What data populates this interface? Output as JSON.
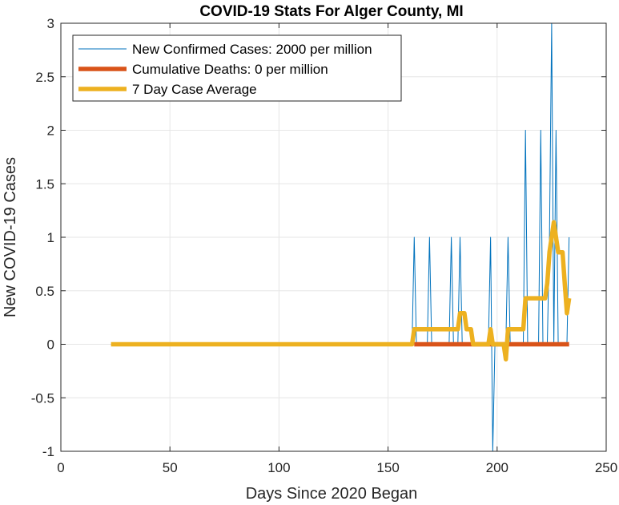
{
  "chart_data": {
    "type": "line",
    "title": "COVID-19 Stats For Alger County, MI",
    "xlabel": "Days Since 2020 Began",
    "ylabel": "New COVID-19 Cases",
    "xlim": [
      0,
      250
    ],
    "ylim": [
      -1,
      3
    ],
    "xticks": [
      0,
      50,
      100,
      150,
      200,
      250
    ],
    "yticks": [
      -1,
      -0.5,
      0,
      0.5,
      1,
      1.5,
      2,
      2.5,
      3
    ],
    "xtick_labels": [
      "0",
      "50",
      "100",
      "150",
      "200",
      "250"
    ],
    "ytick_labels": [
      "-1",
      "-0.5",
      "0",
      "0.5",
      "1",
      "1.5",
      "2",
      "2.5",
      "3"
    ],
    "grid": true,
    "legend_position": "top-left",
    "series": [
      {
        "name": "New Confirmed Cases: 2000 per million",
        "color": "#0072BD",
        "line_width": "thin",
        "points": [
          [
            23,
            0
          ],
          [
            161,
            0
          ],
          [
            162,
            1
          ],
          [
            163,
            0
          ],
          [
            168,
            0
          ],
          [
            169,
            1
          ],
          [
            170,
            0
          ],
          [
            178,
            0
          ],
          [
            179,
            1
          ],
          [
            180,
            0
          ],
          [
            182,
            0
          ],
          [
            183,
            1
          ],
          [
            184,
            0
          ],
          [
            186,
            0
          ],
          [
            187,
            0
          ],
          [
            196,
            0
          ],
          [
            197,
            1
          ],
          [
            198,
            -1
          ],
          [
            199,
            0
          ],
          [
            204,
            0
          ],
          [
            205,
            1
          ],
          [
            206,
            0
          ],
          [
            212,
            0
          ],
          [
            213,
            2
          ],
          [
            214,
            0
          ],
          [
            219,
            0
          ],
          [
            220,
            2
          ],
          [
            221,
            0
          ],
          [
            223,
            0
          ],
          [
            224,
            1
          ],
          [
            225,
            3
          ],
          [
            226,
            0
          ],
          [
            227,
            2
          ],
          [
            228,
            0
          ],
          [
            229,
            0
          ],
          [
            230,
            0
          ],
          [
            232,
            0
          ],
          [
            233,
            1
          ]
        ]
      },
      {
        "name": "Cumulative Deaths: 0 per million",
        "color": "#D95319",
        "line_width": "thick",
        "points": [
          [
            162,
            0
          ],
          [
            233,
            0
          ]
        ]
      },
      {
        "name": "7 Day Case Average",
        "color": "#EDB120",
        "line_width": "thick",
        "points": [
          [
            23,
            0
          ],
          [
            161,
            0
          ],
          [
            162,
            0.14
          ],
          [
            168,
            0.14
          ],
          [
            169,
            0.14
          ],
          [
            175,
            0.14
          ],
          [
            176,
            0.14
          ],
          [
            178,
            0.14
          ],
          [
            179,
            0.14
          ],
          [
            180,
            0.14
          ],
          [
            181,
            0.14
          ],
          [
            182,
            0.14
          ],
          [
            183,
            0.29
          ],
          [
            185,
            0.29
          ],
          [
            186,
            0.14
          ],
          [
            188,
            0.14
          ],
          [
            189,
            0
          ],
          [
            190,
            0
          ],
          [
            196,
            0
          ],
          [
            197,
            0.14
          ],
          [
            198,
            0
          ],
          [
            203,
            0
          ],
          [
            204,
            -0.14
          ],
          [
            205,
            0.14
          ],
          [
            211,
            0.14
          ],
          [
            212,
            0.14
          ],
          [
            213,
            0.43
          ],
          [
            218,
            0.43
          ],
          [
            219,
            0.43
          ],
          [
            220,
            0.43
          ],
          [
            221,
            0.43
          ],
          [
            222,
            0.43
          ],
          [
            223,
            0.57
          ],
          [
            224,
            0.86
          ],
          [
            225,
            1.0
          ],
          [
            226,
            1.14
          ],
          [
            227,
            1.0
          ],
          [
            228,
            0.86
          ],
          [
            230,
            0.86
          ],
          [
            231,
            0.57
          ],
          [
            232,
            0.29
          ],
          [
            233,
            0.43
          ]
        ]
      }
    ]
  }
}
